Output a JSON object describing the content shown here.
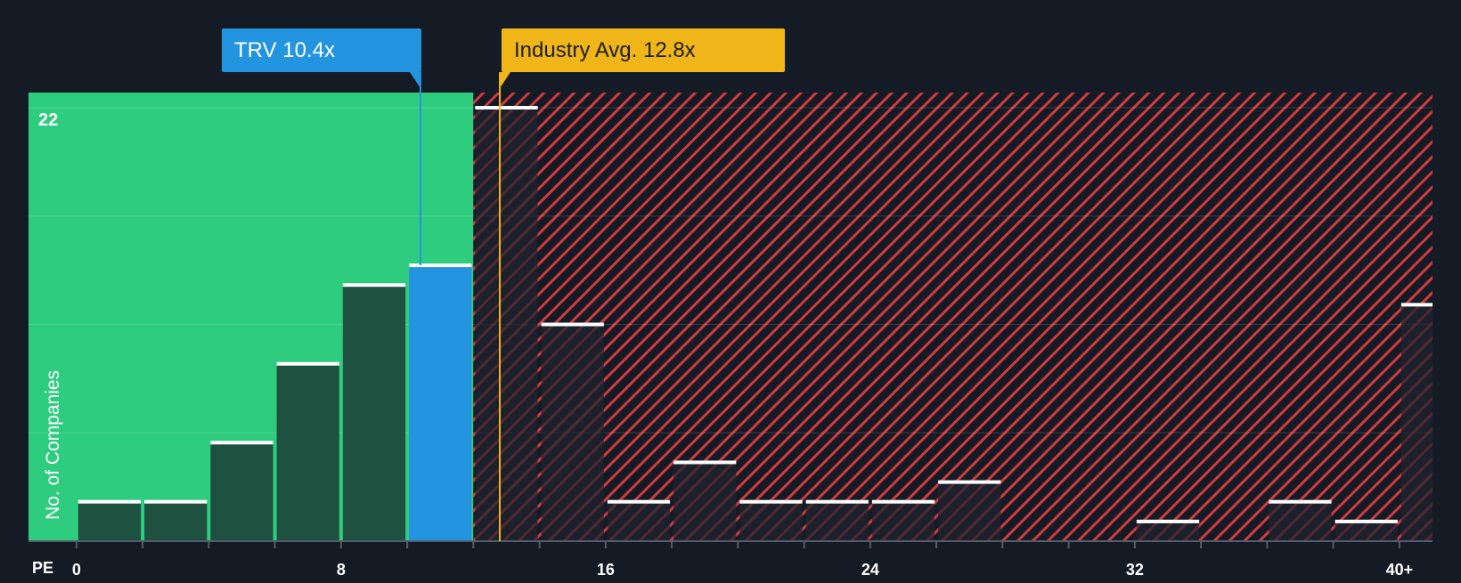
{
  "company_callout": {
    "label": "TRV 10.4x",
    "value": 10.4
  },
  "industry_callout": {
    "label": "Industry Avg. 12.8x",
    "value": 12.8
  },
  "colors": {
    "background": "#151b24",
    "undervalued_zone": "#2ecc7f",
    "overvalued_hatch": "#d13a3f",
    "company_bar": "#2394e0",
    "industry_line": "#f0b619"
  },
  "chart_data": {
    "type": "bar",
    "xlabel": "PE",
    "ylabel": "No. of Companies",
    "x_ticks": [
      "0",
      "8",
      "16",
      "24",
      "32",
      "40+"
    ],
    "x_tick_values": [
      0,
      8,
      16,
      24,
      32,
      40
    ],
    "x_range": [
      -1.45,
      41.0
    ],
    "ylim": [
      0,
      22
    ],
    "y_tick_label": "22",
    "bin_width": 2,
    "bins": [
      {
        "x": 1,
        "count": 2
      },
      {
        "x": 3,
        "count": 2
      },
      {
        "x": 5,
        "count": 5
      },
      {
        "x": 7,
        "count": 9
      },
      {
        "x": 9,
        "count": 13
      },
      {
        "x": 11,
        "count": 14,
        "highlight": true
      },
      {
        "x": 13,
        "count": 22
      },
      {
        "x": 15,
        "count": 11
      },
      {
        "x": 17,
        "count": 2
      },
      {
        "x": 19,
        "count": 4
      },
      {
        "x": 21,
        "count": 2
      },
      {
        "x": 23,
        "count": 2
      },
      {
        "x": 25,
        "count": 2
      },
      {
        "x": 27,
        "count": 3
      },
      {
        "x": 29,
        "count": 0
      },
      {
        "x": 31,
        "count": 0
      },
      {
        "x": 33,
        "count": 1
      },
      {
        "x": 35,
        "count": 0
      },
      {
        "x": 37,
        "count": 2
      },
      {
        "x": 39,
        "count": 1
      },
      {
        "x": 41,
        "count": 12
      }
    ],
    "fair_value_boundary": 12.0,
    "company_pe": 10.4,
    "industry_avg": 12.8
  }
}
